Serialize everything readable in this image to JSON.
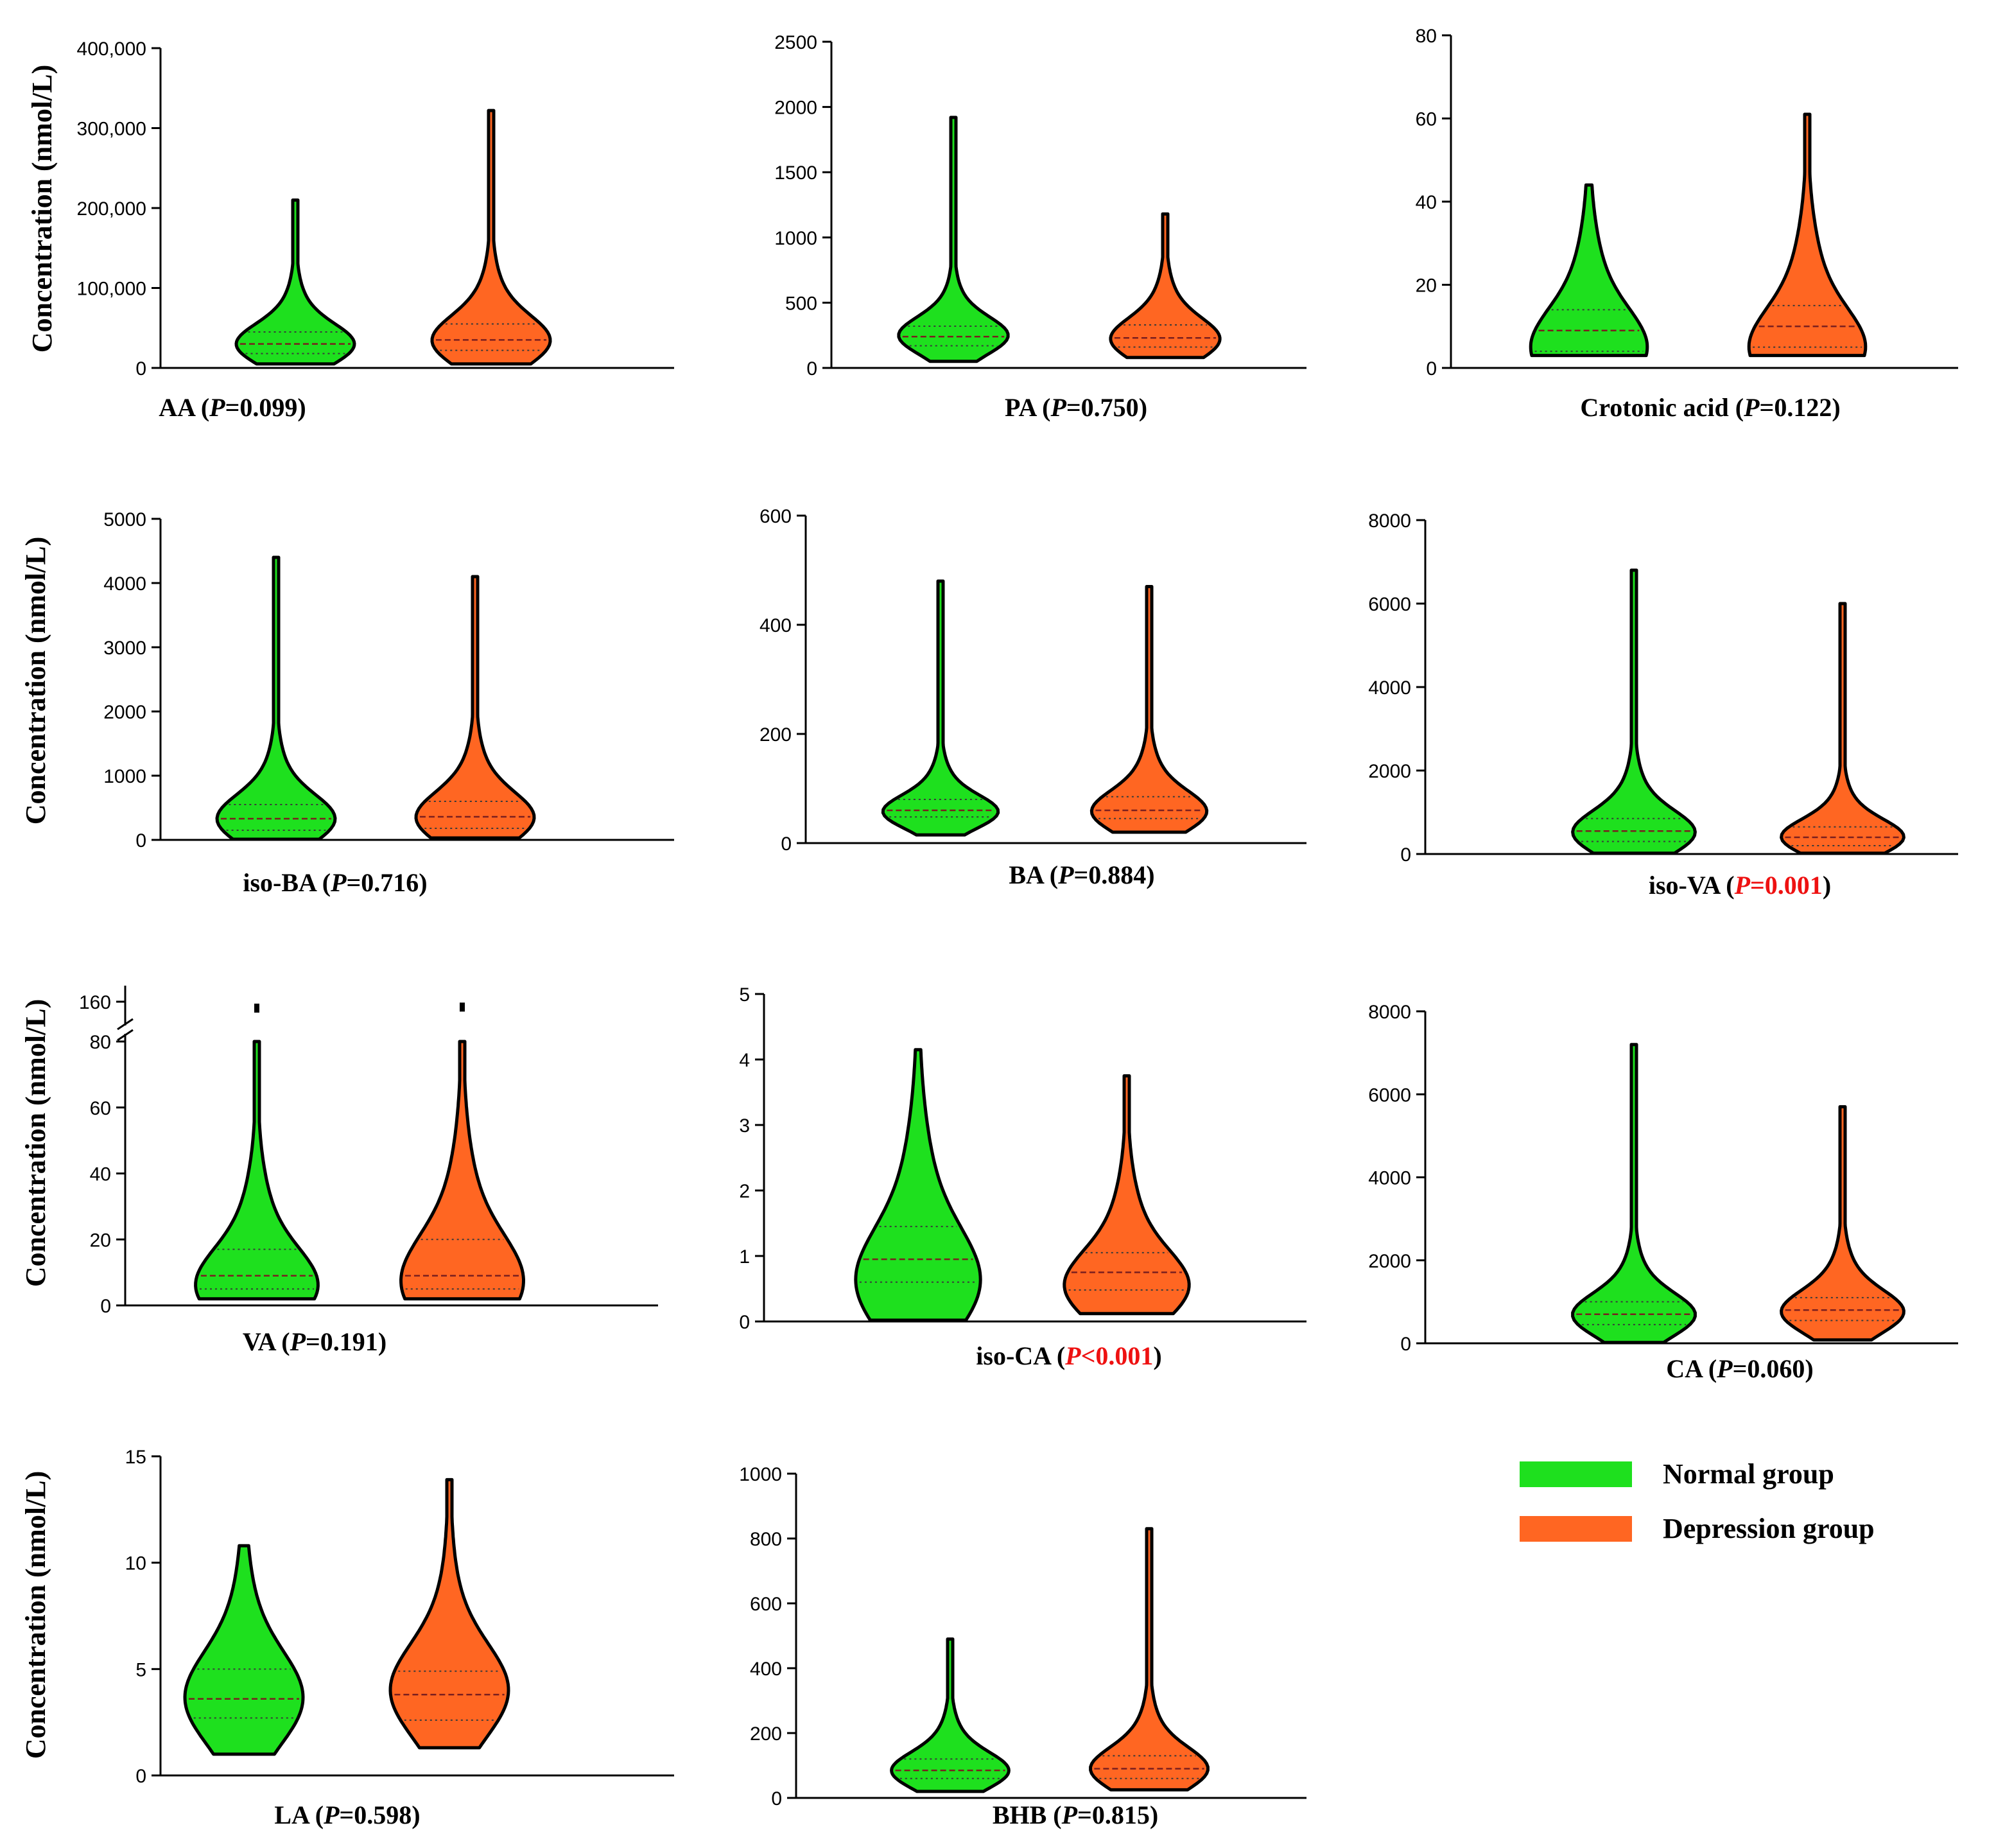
{
  "chart_data": [
    {
      "type": "violin",
      "name": "AA",
      "ylabel": "Concentration (nmol/L)",
      "ylim": [
        0,
        400000
      ],
      "ticks": [
        0,
        100000,
        200000,
        300000,
        400000
      ],
      "tick_labels": [
        "0",
        "100,000",
        "200,000",
        "300,000",
        "400,000"
      ],
      "caption": {
        "metabolite": "AA (",
        "p_symbol": "P",
        "p_value": "=0.099",
        "close": ")",
        "significant": false
      },
      "groups": [
        {
          "group": "Normal group",
          "min": 5000,
          "max": 210000,
          "q1": 18000,
          "median": 30000,
          "q3": 45000,
          "mode": 28000
        },
        {
          "group": "Depression group",
          "min": 5000,
          "max": 322000,
          "q1": 22000,
          "median": 35000,
          "q3": 55000,
          "mode": 32000
        }
      ]
    },
    {
      "type": "violin",
      "name": "PA",
      "ylabel": "",
      "ylim": [
        0,
        2500
      ],
      "ticks": [
        0,
        500,
        1000,
        1500,
        2000,
        2500
      ],
      "tick_labels": [
        "0",
        "500",
        "1000",
        "1500",
        "2000",
        "2500"
      ],
      "caption": {
        "metabolite": "PA (",
        "p_symbol": "P",
        "p_value": "=0.750",
        "close": ")",
        "significant": false
      },
      "groups": [
        {
          "group": "Normal group",
          "min": 50,
          "max": 1920,
          "q1": 170,
          "median": 240,
          "q3": 320,
          "mode": 240
        },
        {
          "group": "Depression group",
          "min": 80,
          "max": 1180,
          "q1": 160,
          "median": 230,
          "q3": 330,
          "mode": 210
        }
      ]
    },
    {
      "type": "violin",
      "name": "Crotonic acid",
      "ylabel": "",
      "ylim": [
        0,
        80
      ],
      "ticks": [
        0,
        20,
        40,
        60,
        80
      ],
      "tick_labels": [
        "0",
        "20",
        "40",
        "60",
        "80"
      ],
      "caption": {
        "metabolite": "Crotonic acid  (",
        "p_symbol": "P",
        "p_value": "=0.122",
        "close": ")",
        "significant": false
      },
      "groups": [
        {
          "group": "Normal group",
          "min": 3,
          "max": 44,
          "q1": 4,
          "median": 9,
          "q3": 14,
          "mode": 4
        },
        {
          "group": "Depression group",
          "min": 3,
          "max": 61,
          "q1": 5,
          "median": 10,
          "q3": 15,
          "mode": 4
        }
      ]
    },
    {
      "type": "violin",
      "name": "iso-BA",
      "ylabel": "Concentration (nmol/L)",
      "ylim": [
        0,
        5000
      ],
      "ticks": [
        0,
        1000,
        2000,
        3000,
        4000,
        5000
      ],
      "tick_labels": [
        "0",
        "1000",
        "2000",
        "3000",
        "4000",
        "5000"
      ],
      "caption": {
        "metabolite": "iso-BA (",
        "p_symbol": "P",
        "p_value": "=0.716",
        "close": ")",
        "significant": false
      },
      "groups": [
        {
          "group": "Normal group",
          "min": 10,
          "max": 4400,
          "q1": 150,
          "median": 330,
          "q3": 550,
          "mode": 300
        },
        {
          "group": "Depression group",
          "min": 30,
          "max": 4100,
          "q1": 180,
          "median": 360,
          "q3": 600,
          "mode": 320
        }
      ]
    },
    {
      "type": "violin",
      "name": "BA",
      "ylabel": "",
      "ylim": [
        0,
        600
      ],
      "ticks": [
        0,
        200,
        400,
        600
      ],
      "tick_labels": [
        "0",
        "200",
        "400",
        "600"
      ],
      "caption": {
        "metabolite": "BA (",
        "p_symbol": "P",
        "p_value": "=0.884",
        "close": ")",
        "significant": false
      },
      "groups": [
        {
          "group": "Normal group",
          "min": 15,
          "max": 480,
          "q1": 48,
          "median": 60,
          "q3": 80,
          "mode": 55
        },
        {
          "group": "Depression group",
          "min": 20,
          "max": 470,
          "q1": 45,
          "median": 60,
          "q3": 85,
          "mode": 55
        }
      ]
    },
    {
      "type": "violin",
      "name": "iso-VA",
      "ylabel": "",
      "ylim": [
        0,
        8000
      ],
      "ticks": [
        0,
        2000,
        4000,
        6000,
        8000
      ],
      "tick_labels": [
        "0",
        "2000",
        "4000",
        "6000",
        "8000"
      ],
      "caption": {
        "metabolite": "iso-VA (",
        "p_symbol": "P",
        "p_value": "=0.001",
        "close": ")",
        "significant": true
      },
      "groups": [
        {
          "group": "Normal group",
          "min": 20,
          "max": 6800,
          "q1": 300,
          "median": 550,
          "q3": 850,
          "mode": 480
        },
        {
          "group": "Depression group",
          "min": 20,
          "max": 6000,
          "q1": 200,
          "median": 400,
          "q3": 650,
          "mode": 380
        }
      ]
    },
    {
      "type": "violin",
      "name": "VA",
      "ylabel": "Concentration (nmol/L)",
      "ylim": [
        0,
        80
      ],
      "ticks": [
        0,
        20,
        40,
        60,
        80
      ],
      "tick_labels": [
        "0",
        "20",
        "40",
        "60",
        "80"
      ],
      "axis_break": {
        "upper_tick": 160,
        "upper_label": "160"
      },
      "caption": {
        "metabolite": "VA (",
        "p_symbol": "P",
        "p_value": "=0.191",
        "close": ")",
        "significant": false
      },
      "groups": [
        {
          "group": "Normal group",
          "min": 2,
          "max": 80,
          "q1": 5,
          "median": 9,
          "q3": 17,
          "mode": 5,
          "outlier": 160
        },
        {
          "group": "Depression group",
          "min": 2,
          "max": 80,
          "q1": 5,
          "median": 9,
          "q3": 20,
          "mode": 6,
          "outlier": 162
        }
      ]
    },
    {
      "type": "violin",
      "name": "iso-CA",
      "ylabel": "",
      "ylim": [
        0,
        5
      ],
      "ticks": [
        0,
        1,
        2,
        3,
        4,
        5
      ],
      "tick_labels": [
        "0",
        "1",
        "2",
        "3",
        "4",
        "5"
      ],
      "caption": {
        "metabolite": "iso-CA (",
        "p_symbol": "P",
        "p_value": "<0.001",
        "close": ")",
        "significant": true
      },
      "groups": [
        {
          "group": "Normal group",
          "min": 0.02,
          "max": 4.15,
          "q1": 0.6,
          "median": 0.95,
          "q3": 1.45,
          "mode": 0.55
        },
        {
          "group": "Depression group",
          "min": 0.12,
          "max": 3.75,
          "q1": 0.48,
          "median": 0.75,
          "q3": 1.05,
          "mode": 0.5
        }
      ]
    },
    {
      "type": "violin",
      "name": "CA",
      "ylabel": "",
      "ylim": [
        0,
        8000
      ],
      "ticks": [
        0,
        2000,
        4000,
        6000,
        8000
      ],
      "tick_labels": [
        "0",
        "2000",
        "4000",
        "6000",
        "8000"
      ],
      "caption": {
        "metabolite": "CA (",
        "p_symbol": "P",
        "p_value": "=0.060",
        "close": ")",
        "significant": false
      },
      "groups": [
        {
          "group": "Normal group",
          "min": 20,
          "max": 7200,
          "q1": 450,
          "median": 700,
          "q3": 1000,
          "mode": 650
        },
        {
          "group": "Depression group",
          "min": 80,
          "max": 5700,
          "q1": 550,
          "median": 800,
          "q3": 1100,
          "mode": 720
        }
      ]
    },
    {
      "type": "violin",
      "name": "LA",
      "ylabel": "Concentration (nmol/L)",
      "ylim": [
        0,
        15
      ],
      "ticks": [
        0,
        5,
        10,
        15
      ],
      "tick_labels": [
        "0",
        "5",
        "10",
        "15"
      ],
      "caption": {
        "metabolite": "LA (",
        "p_symbol": "P",
        "p_value": "=0.598",
        "close": ")",
        "significant": false
      },
      "groups": [
        {
          "group": "Normal group",
          "min": 1.0,
          "max": 10.8,
          "q1": 2.7,
          "median": 3.6,
          "q3": 5.0,
          "mode": 3.5
        },
        {
          "group": "Depression group",
          "min": 1.3,
          "max": 13.9,
          "q1": 2.6,
          "median": 3.8,
          "q3": 4.9,
          "mode": 3.9
        }
      ]
    },
    {
      "type": "violin",
      "name": "BHB",
      "ylabel": "",
      "ylim": [
        0,
        1000
      ],
      "ticks": [
        0,
        200,
        400,
        600,
        800,
        1000
      ],
      "tick_labels": [
        "0",
        "200",
        "400",
        "600",
        "800",
        "1000"
      ],
      "caption": {
        "metabolite": "BHB (",
        "p_symbol": "P",
        "p_value": "=0.815",
        "close": ")",
        "significant": false
      },
      "groups": [
        {
          "group": "Normal group",
          "min": 20,
          "max": 490,
          "q1": 60,
          "median": 85,
          "q3": 120,
          "mode": 80
        },
        {
          "group": "Depression group",
          "min": 25,
          "max": 830,
          "q1": 60,
          "median": 90,
          "q3": 130,
          "mode": 85
        }
      ]
    }
  ],
  "legend": [
    {
      "label": "Normal group",
      "color": "#1ee01e"
    },
    {
      "label": "Depression group",
      "color": "#ff6622"
    }
  ],
  "colors": {
    "normal": "#1ee01e",
    "depression": "#ff6622",
    "significant": "#ee1111",
    "outline": "#000000"
  }
}
